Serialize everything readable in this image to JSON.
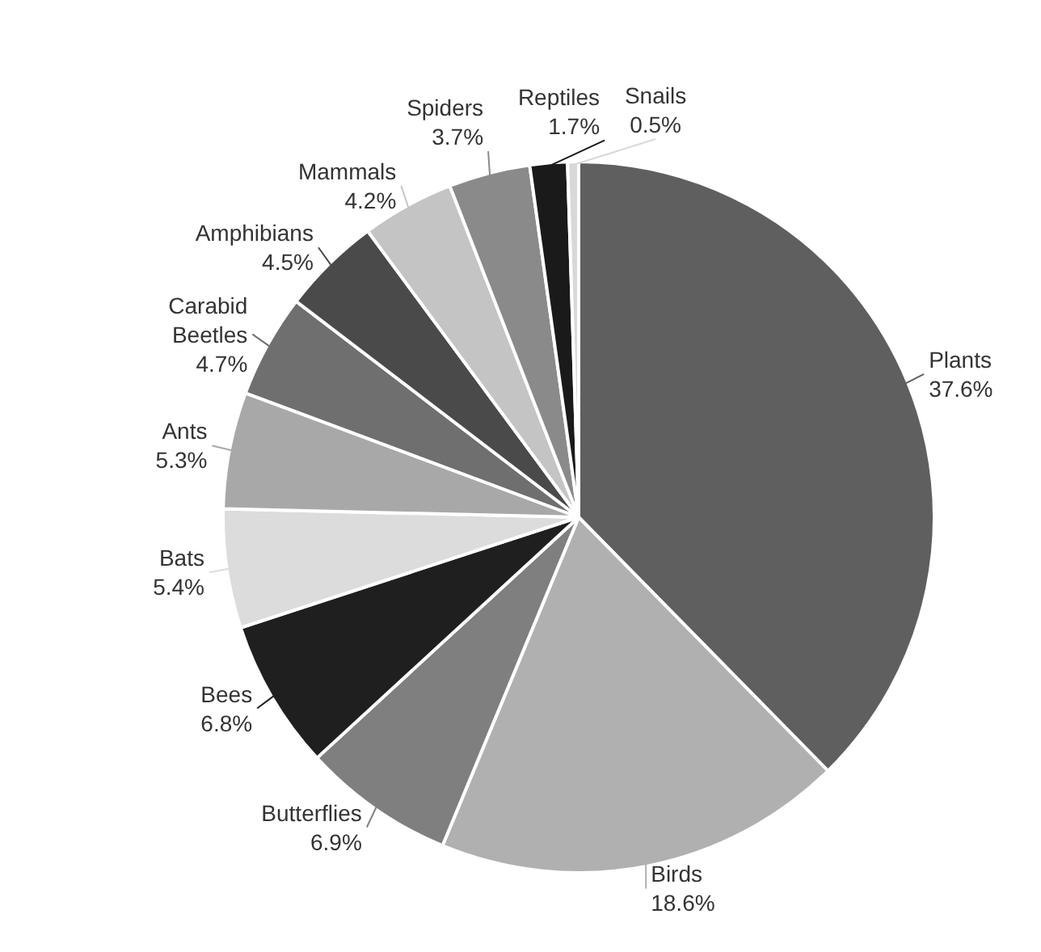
{
  "chart_data": {
    "type": "pie",
    "categories": [
      "Plants",
      "Birds",
      "Butterflies",
      "Bees",
      "Bats",
      "Ants",
      "Carabid Beetles",
      "Amphibians",
      "Mammals",
      "Spiders",
      "Reptiles",
      "Snails"
    ],
    "values": [
      37.6,
      18.6,
      6.9,
      6.8,
      5.4,
      5.3,
      4.7,
      4.5,
      4.2,
      3.7,
      1.7,
      0.5
    ],
    "value_labels": [
      "37.6%",
      "18.6%",
      "6.9%",
      "6.8%",
      "5.4%",
      "5.3%",
      "4.7%",
      "4.5%",
      "4.2%",
      "3.7%",
      "1.7%",
      "0.5%"
    ],
    "colors": [
      "#5f5f5f",
      "#b0b0b0",
      "#7f7f7f",
      "#1f1f1f",
      "#dcdcdc",
      "#a8a8a8",
      "#6f6f6f",
      "#4a4a4a",
      "#c4c4c4",
      "#8a8a8a",
      "#1a1a1a",
      "#d8d8d8"
    ]
  }
}
